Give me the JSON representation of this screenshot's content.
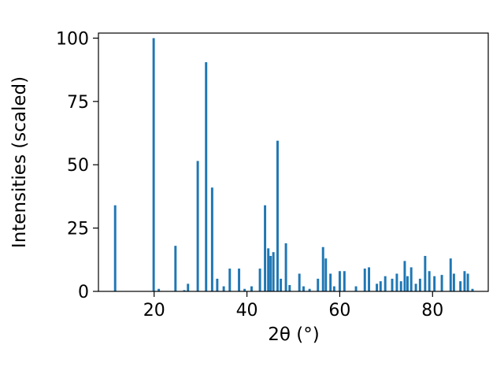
{
  "figure": {
    "background": "#ffffff",
    "spine_color": "#000000",
    "tick_color": "#000000"
  },
  "chart_data": {
    "type": "bar",
    "title": "",
    "xlabel": "2θ (°)",
    "ylabel": "Intensities (scaled)",
    "xlim": [
      8,
      92
    ],
    "ylim": [
      0,
      102
    ],
    "xticks": [
      20,
      40,
      60,
      80
    ],
    "yticks": [
      0,
      25,
      50,
      75,
      100
    ],
    "grid": false,
    "legend": false,
    "bar_color": "#1f77b4",
    "bar_width_units": 0.5,
    "x": [
      11.6,
      19.9,
      21.0,
      24.6,
      26.5,
      27.3,
      29.4,
      31.2,
      32.5,
      33.6,
      35.0,
      36.3,
      38.3,
      39.5,
      41.0,
      42.8,
      43.9,
      44.6,
      45.1,
      45.7,
      46.6,
      47.3,
      48.4,
      49.2,
      51.3,
      52.2,
      53.5,
      55.3,
      56.4,
      57.0,
      58.0,
      58.8,
      60.0,
      61.0,
      63.5,
      65.4,
      66.3,
      68.0,
      68.8,
      69.8,
      71.3,
      72.3,
      73.2,
      74.0,
      74.6,
      75.4,
      76.4,
      77.3,
      78.4,
      79.3,
      80.4,
      82.0,
      83.9,
      84.6,
      86.0,
      86.9,
      87.6,
      88.6
    ],
    "values": [
      34,
      100,
      1,
      18,
      0.5,
      3,
      51.5,
      90.5,
      41,
      5,
      2,
      9,
      9,
      1,
      2,
      9,
      34,
      17,
      14,
      15.5,
      59.5,
      5,
      19,
      2.5,
      7,
      2,
      1,
      5,
      17.5,
      13,
      7,
      2,
      8,
      8,
      2,
      9,
      9.5,
      3,
      4,
      6,
      5,
      7,
      4,
      12,
      6,
      9.5,
      3,
      5,
      14,
      8,
      6,
      6.5,
      13,
      7,
      4,
      8,
      7,
      1
    ]
  }
}
